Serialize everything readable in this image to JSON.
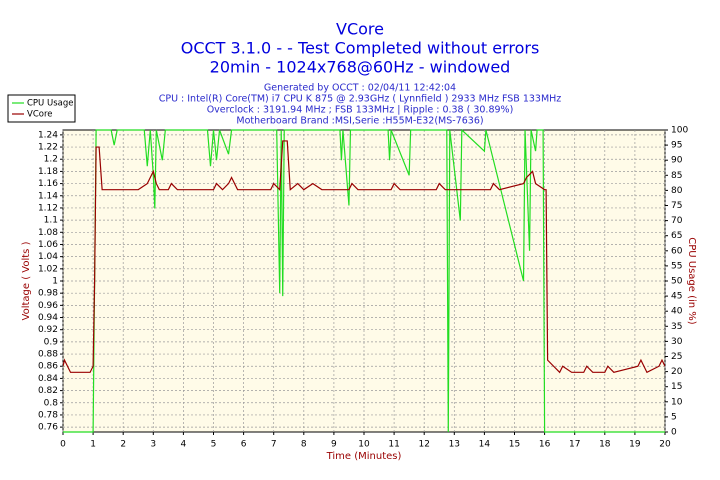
{
  "chart_data": {
    "type": "line",
    "title": "VCore",
    "subtitle": [
      "OCCT 3.1.0 -  - Test Completed without errors",
      "20min - 1024x768@60Hz - windowed"
    ],
    "info": [
      "Generated by OCCT : 02/04/11 12:42:04",
      "CPU : Intel(R) Core(TM) i7 CPU K 875 @ 2.93GHz ( Lynnfield ) 2933 MHz FSB 133MHz",
      "Overclock : 3191.94 MHz ; FSB 133MHz | Ripple : 0.38 ( 30.89%)",
      "Motherboard Brand :MSI,Serie :H55M-E32(MS-7636)"
    ],
    "x_label": "Time (Minutes)",
    "y_label": "Voltage ( Volts )",
    "y2_label": "CPU Usage (in %)",
    "xlim": [
      0,
      20
    ],
    "xticks": [
      0,
      1,
      2,
      3,
      4,
      5,
      6,
      7,
      8,
      9,
      10,
      11,
      12,
      13,
      14,
      15,
      16,
      17,
      18,
      19,
      20
    ],
    "ylim": [
      0.752,
      1.248
    ],
    "yticks": [
      0.76,
      0.78,
      0.8,
      0.82,
      0.84,
      0.86,
      0.88,
      0.9,
      0.92,
      0.94,
      0.96,
      0.98,
      1,
      1.02,
      1.04,
      1.06,
      1.08,
      1.1,
      1.12,
      1.14,
      1.16,
      1.18,
      1.2,
      1.22,
      1.24
    ],
    "y2lim": [
      0,
      100
    ],
    "y2ticks": [
      0,
      5,
      10,
      15,
      20,
      25,
      30,
      35,
      40,
      45,
      50,
      55,
      60,
      65,
      70,
      75,
      80,
      85,
      90,
      95,
      100
    ],
    "grid": true,
    "legend": "upper left",
    "series": [
      {
        "name": "CPU Usage",
        "color": "#22dd22",
        "axis": "y2",
        "x": [
          0,
          1.0,
          1.05,
          1.1,
          1.6,
          1.7,
          1.8,
          2.7,
          2.8,
          2.9,
          3.0,
          3.05,
          3.1,
          3.3,
          3.4,
          4.8,
          4.9,
          5.0,
          5.1,
          5.2,
          5.5,
          5.6,
          7.1,
          7.2,
          7.25,
          7.3,
          7.35,
          9.2,
          9.25,
          9.3,
          9.5,
          9.55,
          10.8,
          10.85,
          10.9,
          11.5,
          11.55,
          12.75,
          12.8,
          12.85,
          13.2,
          13.25,
          14.0,
          14.05,
          15.3,
          15.35,
          15.5,
          15.55,
          15.7,
          15.75,
          15.95,
          16.0,
          20
        ],
        "values": [
          0,
          0,
          50,
          100,
          100,
          95,
          100,
          100,
          88,
          100,
          85,
          74,
          100,
          90,
          100,
          100,
          88,
          100,
          90,
          100,
          92,
          100,
          100,
          46,
          100,
          45,
          100,
          100,
          90,
          100,
          75,
          100,
          100,
          90,
          100,
          85,
          100,
          100,
          0,
          100,
          70,
          100,
          93,
          100,
          50,
          100,
          60,
          100,
          93,
          100,
          100,
          0,
          0
        ]
      },
      {
        "name": "VCore",
        "color": "#990000",
        "axis": "y",
        "x": [
          0,
          0.05,
          0.15,
          0.25,
          0.5,
          0.9,
          1.0,
          1.05,
          1.1,
          1.2,
          1.3,
          1.4,
          2.5,
          2.8,
          2.9,
          3.0,
          3.1,
          3.2,
          3.5,
          3.6,
          3.8,
          4.5,
          5.0,
          5.1,
          5.3,
          5.5,
          5.6,
          5.8,
          6.9,
          7.0,
          7.2,
          7.3,
          7.45,
          7.55,
          7.8,
          8.0,
          8.3,
          8.6,
          9.5,
          9.6,
          9.8,
          10.9,
          11.0,
          11.2,
          12.4,
          12.5,
          12.7,
          14.2,
          14.3,
          14.5,
          15.3,
          15.4,
          15.6,
          15.7,
          16.0,
          16.05,
          16.1,
          16.3,
          16.5,
          16.6,
          16.9,
          17.3,
          17.4,
          17.6,
          18.0,
          18.1,
          18.3,
          19.1,
          19.2,
          19.4,
          19.8,
          19.9,
          20
        ],
        "values": [
          0.86,
          0.87,
          0.86,
          0.85,
          0.85,
          0.85,
          0.86,
          1.0,
          1.22,
          1.22,
          1.15,
          1.15,
          1.15,
          1.16,
          1.17,
          1.18,
          1.16,
          1.15,
          1.15,
          1.16,
          1.15,
          1.15,
          1.15,
          1.16,
          1.15,
          1.16,
          1.17,
          1.15,
          1.15,
          1.16,
          1.15,
          1.23,
          1.23,
          1.15,
          1.16,
          1.15,
          1.16,
          1.15,
          1.15,
          1.16,
          1.15,
          1.15,
          1.16,
          1.15,
          1.15,
          1.16,
          1.15,
          1.15,
          1.16,
          1.15,
          1.16,
          1.17,
          1.18,
          1.16,
          1.15,
          1.15,
          0.87,
          0.86,
          0.85,
          0.86,
          0.85,
          0.85,
          0.86,
          0.85,
          0.85,
          0.86,
          0.85,
          0.86,
          0.87,
          0.85,
          0.86,
          0.87,
          0.86
        ]
      }
    ]
  }
}
